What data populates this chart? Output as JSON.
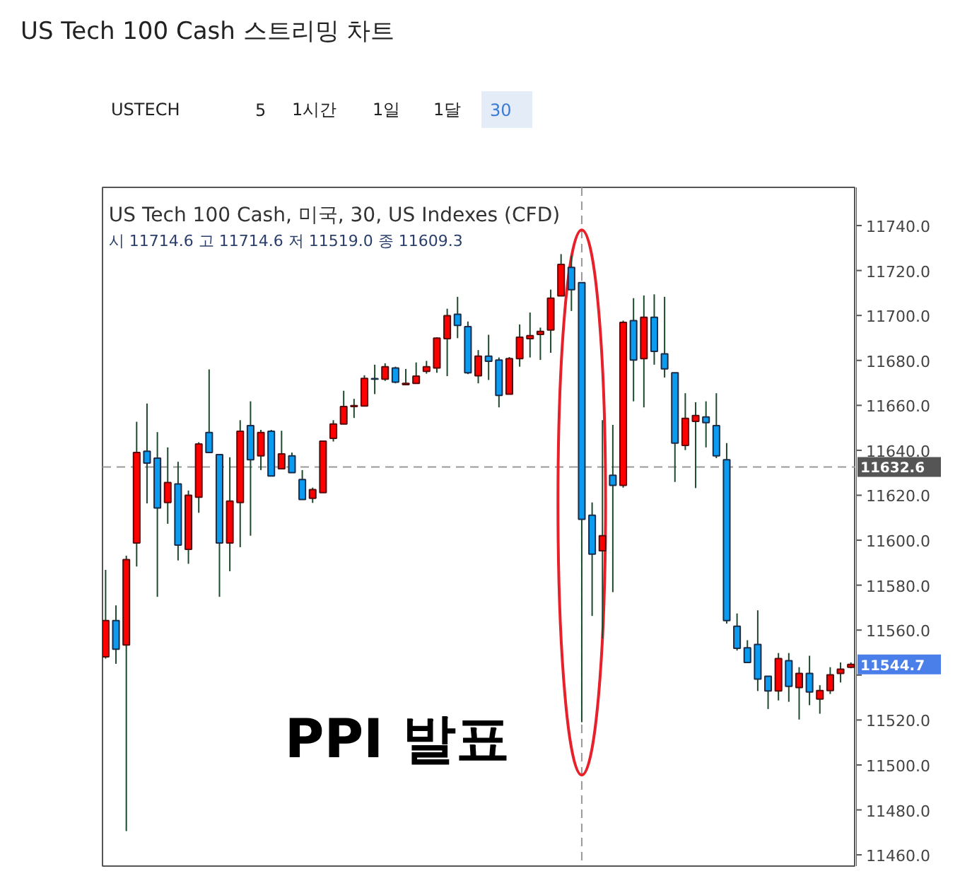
{
  "chart_data": {
    "type": "candlestick",
    "title": "US Tech 100 Cash 스트리밍 차트",
    "subtitle": "US Tech 100 Cash, 미국, 30, US Indexes (CFD)",
    "annotations": [
      "시 11714.6 고 11714.6 저 11519.0 종 11609.3",
      "PPI 발표",
      "11544.7",
      "USTECH",
      "5",
      "1시간",
      "1일",
      "1달",
      "30"
    ],
    "categories": [
      null,
      null,
      null,
      null,
      null,
      null,
      null,
      null,
      null,
      null,
      null,
      null,
      null,
      null,
      null,
      null,
      null,
      null,
      null,
      null,
      null,
      null,
      null,
      null,
      null,
      null,
      null,
      null,
      null,
      null,
      null,
      null,
      null,
      null,
      null,
      null,
      null,
      null,
      null,
      null,
      null,
      null,
      null,
      null,
      null,
      null,
      null,
      null,
      null,
      null,
      null,
      null,
      null,
      null,
      null,
      null,
      null,
      null,
      null,
      null,
      null,
      null,
      null,
      null,
      null,
      null,
      null,
      null,
      null,
      null,
      null,
      null,
      null
    ],
    "ohlc": [
      [
        11548.1,
        11586.8,
        11547.3,
        11564.2
      ],
      [
        11564.2,
        11571.0,
        11545.0,
        11551.5
      ],
      [
        11553.4,
        11593.1,
        11470.6,
        11591.4
      ],
      [
        11598.8,
        11652.7,
        11588.3,
        11639.0
      ],
      [
        11639.6,
        11660.8,
        11616.4,
        11634.3
      ],
      [
        11636.5,
        11648.1,
        11574.8,
        11614.3
      ],
      [
        11616.8,
        11641.3,
        11607.3,
        11625.7
      ],
      [
        11625.0,
        11634.9,
        11591.0,
        11597.8
      ],
      [
        11595.9,
        11622.1,
        11589.5,
        11620.0
      ],
      [
        11619.1,
        11643.6,
        11612.2,
        11642.8
      ],
      [
        11647.9,
        11676.0,
        11639.0,
        11639.0
      ],
      [
        11638.1,
        11638.1,
        11574.8,
        11598.8
      ],
      [
        11598.8,
        11636.9,
        11586.2,
        11617.4
      ],
      [
        11616.8,
        11653.4,
        11596.9,
        11648.5
      ],
      [
        11651.0,
        11661.8,
        11602.0,
        11635.8
      ],
      [
        11637.5,
        11649.1,
        11631.2,
        11647.9
      ],
      [
        11648.5,
        11649.1,
        11628.6,
        11628.6
      ],
      [
        11631.8,
        11648.7,
        11631.8,
        11638.4
      ],
      [
        11637.5,
        11639.0,
        11630.1,
        11630.1
      ],
      [
        11627.0,
        11631.2,
        11618.1,
        11618.1
      ],
      [
        11618.7,
        11623.4,
        11616.6,
        11622.5
      ],
      [
        11621.2,
        11644.1,
        11621.2,
        11644.1
      ],
      [
        11645.3,
        11653.4,
        11643.9,
        11651.7
      ],
      [
        11651.7,
        11666.5,
        11651.7,
        11659.5
      ],
      [
        11659.5,
        11662.9,
        11654.4,
        11659.9
      ],
      [
        11659.7,
        11673.4,
        11659.7,
        11672.0
      ],
      [
        11671.9,
        11678.1,
        11665.0,
        11671.7
      ],
      [
        11671.7,
        11678.7,
        11670.9,
        11677.2
      ],
      [
        11676.6,
        11677.2,
        11669.8,
        11670.3
      ],
      [
        11669.2,
        11676.2,
        11669.2,
        11669.8
      ],
      [
        11669.8,
        11679.1,
        11669.8,
        11673.0
      ],
      [
        11675.1,
        11679.8,
        11674.1,
        11677.2
      ],
      [
        11676.6,
        11690.3,
        11674.5,
        11689.9
      ],
      [
        11689.7,
        11703.0,
        11673.0,
        11699.9
      ],
      [
        11700.5,
        11708.3,
        11689.9,
        11695.6
      ],
      [
        11695.0,
        11697.3,
        11673.9,
        11674.5
      ],
      [
        11673.2,
        11684.6,
        11669.8,
        11681.9
      ],
      [
        11681.9,
        11691.4,
        11671.3,
        11679.6
      ],
      [
        11680.2,
        11681.3,
        11659.1,
        11664.4
      ],
      [
        11665.0,
        11681.5,
        11665.0,
        11680.8
      ],
      [
        11680.8,
        11696.0,
        11677.2,
        11690.3
      ],
      [
        11689.7,
        11701.3,
        11681.3,
        11691.0
      ],
      [
        11691.6,
        11694.6,
        11680.2,
        11692.9
      ],
      [
        11693.5,
        11711.5,
        11683.4,
        11707.7
      ],
      [
        11708.7,
        11727.3,
        11708.7,
        11722.7
      ],
      [
        11721.4,
        11726.7,
        11702.0,
        11711.5
      ],
      [
        11714.6,
        11714.6,
        11519.0,
        11609.3
      ],
      [
        11611.1,
        11616.8,
        11566.3,
        11593.8
      ],
      [
        11595.3,
        11653.4,
        11556.2,
        11602.0
      ],
      [
        11628.9,
        11651.3,
        11576.9,
        11624.4
      ],
      [
        11624.4,
        11697.7,
        11623.4,
        11696.9
      ],
      [
        11697.7,
        11707.7,
        11661.8,
        11680.2
      ],
      [
        11680.8,
        11708.9,
        11659.1,
        11699.2
      ],
      [
        11699.2,
        11709.4,
        11678.1,
        11684.0
      ],
      [
        11682.9,
        11708.3,
        11672.4,
        11676.2
      ],
      [
        11674.5,
        11674.5,
        11625.9,
        11643.2
      ],
      [
        11642.2,
        11665.4,
        11640.1,
        11654.2
      ],
      [
        11652.9,
        11661.4,
        11623.2,
        11655.5
      ],
      [
        11654.8,
        11661.8,
        11641.3,
        11652.3
      ],
      [
        11651.0,
        11665.4,
        11636.5,
        11637.5
      ],
      [
        11635.8,
        11643.2,
        11562.9,
        11564.2
      ],
      [
        11561.7,
        11567.4,
        11550.9,
        11551.9
      ],
      [
        11552.1,
        11555.5,
        11545.6,
        11545.6
      ],
      [
        11553.6,
        11568.8,
        11532.9,
        11538.2
      ],
      [
        11539.5,
        11539.5,
        11524.9,
        11532.9
      ],
      [
        11532.9,
        11549.8,
        11528.7,
        11547.3
      ],
      [
        11546.4,
        11549.8,
        11528.1,
        11535.0
      ],
      [
        11534.4,
        11543.5,
        11520.2,
        11540.7
      ],
      [
        11540.7,
        11548.6,
        11526.6,
        11532.5
      ],
      [
        11529.3,
        11535.5,
        11522.8,
        11533.1
      ],
      [
        11533.1,
        11543.5,
        11531.6,
        11540.1
      ],
      [
        11540.7,
        11545.6,
        11536.7,
        11542.6
      ],
      [
        11543.5,
        11545.6,
        11543.0,
        11544.7
      ]
    ],
    "colors": [
      "#ff0000",
      "#0b9cf2",
      "#ff0000",
      "#ff0000",
      "#0b9cf2",
      "#0b9cf2",
      "#ff0000",
      "#0b9cf2",
      "#ff0000",
      "#ff0000",
      "#0b9cf2",
      "#0b9cf2",
      "#ff0000",
      "#ff0000",
      "#0b9cf2",
      "#ff0000",
      "#0b9cf2",
      "#ff0000",
      "#0b9cf2",
      "#0b9cf2",
      "#ff0000",
      "#ff0000",
      "#ff0000",
      "#ff0000",
      "#ff0000",
      "#ff0000",
      "#0b9cf2",
      "#ff0000",
      "#0b9cf2",
      "#ff0000",
      "#ff0000",
      "#ff0000",
      "#ff0000",
      "#ff0000",
      "#0b9cf2",
      "#0b9cf2",
      "#ff0000",
      "#0b9cf2",
      "#0b9cf2",
      "#ff0000",
      "#ff0000",
      "#ff0000",
      "#ff0000",
      "#ff0000",
      "#ff0000",
      "#0b9cf2",
      "#0b9cf2",
      "#0b9cf2",
      "#ff0000",
      "#0b9cf2",
      "#ff0000",
      "#0b9cf2",
      "#ff0000",
      "#0b9cf2",
      "#0b9cf2",
      "#0b9cf2",
      "#ff0000",
      "#ff0000",
      "#0b9cf2",
      "#0b9cf2",
      "#0b9cf2",
      "#0b9cf2",
      "#0b9cf2",
      "#0b9cf2",
      "#0b9cf2",
      "#ff0000",
      "#0b9cf2",
      "#ff0000",
      "#0b9cf2",
      "#ff0000",
      "#ff0000",
      "#ff0000",
      "#ff0000"
    ],
    "ylim": [
      11455,
      11757
    ],
    "yticks": [
      {
        "value": 11460,
        "label": "11460.0"
      },
      {
        "value": 11480,
        "label": "11480.0"
      },
      {
        "value": 11500,
        "label": "11500.0"
      },
      {
        "value": 11520,
        "label": "11520.0"
      },
      {
        "value": 11540,
        "label": null
      },
      {
        "value": 11560,
        "label": "11560.0"
      },
      {
        "value": 11580,
        "label": "11580.0"
      },
      {
        "value": 11600,
        "label": "11600.0"
      },
      {
        "value": 11620,
        "label": "11620.0"
      },
      {
        "value": 11640,
        "label": "11640.0"
      },
      {
        "value": 11660,
        "label": "11660.0"
      },
      {
        "value": 11680,
        "label": "11680.0"
      },
      {
        "value": 11700,
        "label": "11700.0"
      },
      {
        "value": 11720,
        "label": "11720.0"
      },
      {
        "value": 11740,
        "label": "11740.0"
      }
    ],
    "ref_lines": [
      {
        "axis": "y",
        "value": 11632.6,
        "label": "11632.6",
        "color": "#999999",
        "line_style": "dashed"
      }
    ],
    "tick_labels": "y",
    "grid": false
  }
}
